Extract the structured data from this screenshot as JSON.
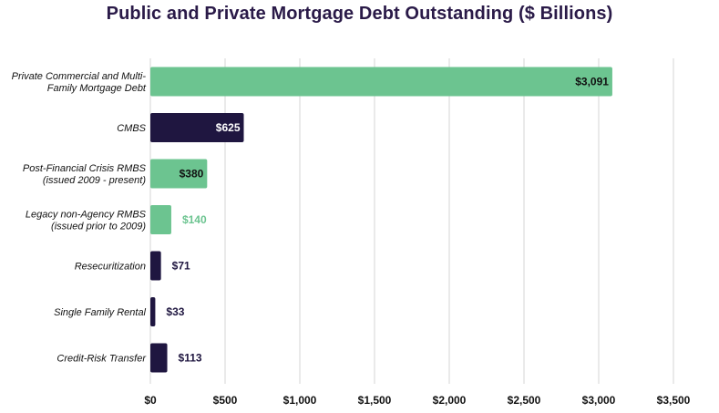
{
  "chart_data": {
    "type": "bar",
    "orientation": "horizontal",
    "title": "Public and Private Mortgage Debt Outstanding ($ Billions)",
    "xlabel": "",
    "ylabel": "",
    "xlim": [
      0,
      3500
    ],
    "grid": true,
    "legend": "none",
    "categories": [
      [
        "Private Commercial and Multi-",
        "Family Mortgage Debt"
      ],
      [
        "CMBS"
      ],
      [
        "Post-Financial Crisis RMBS",
        "(issued 2009 - present)"
      ],
      [
        "Legacy non-Agency RMBS",
        "(issued prior to 2009)"
      ],
      [
        "Resecuritization"
      ],
      [
        "Single Family Rental"
      ],
      [
        "Credit-Risk Transfer"
      ]
    ],
    "values": [
      3091,
      625,
      380,
      140,
      71,
      33,
      113
    ],
    "value_labels": [
      "$3,091",
      "$625",
      "$380",
      "$140",
      "$71",
      "$33",
      "$113"
    ],
    "bar_colors": [
      "#6cc490",
      "#1f1640",
      "#6cc490",
      "#6cc490",
      "#1f1640",
      "#1f1640",
      "#1f1640"
    ],
    "value_label_colors": [
      "#111111",
      "#ffffff",
      "#111111",
      "#6cc490",
      "#1f1640",
      "#1f1640",
      "#1f1640"
    ],
    "value_label_inside": [
      true,
      true,
      true,
      false,
      false,
      false,
      false
    ],
    "x_ticks": [
      0,
      500,
      1000,
      1500,
      2000,
      2500,
      3000,
      3500
    ],
    "x_tick_labels": [
      "$0",
      "$500",
      "$1,000",
      "$1,500",
      "$2,000",
      "$2,500",
      "$3,000",
      "$3,500"
    ]
  },
  "colors": {
    "title": "#2a1a48",
    "grid": "#d4d4d4",
    "green": "#6cc490",
    "navy": "#1f1640"
  }
}
